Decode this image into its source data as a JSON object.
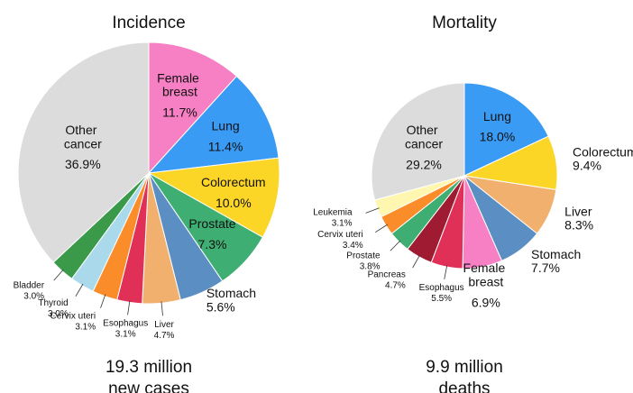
{
  "chart_data": [
    {
      "type": "pie",
      "title": "Incidence",
      "categories": [
        "Female breast",
        "Lung",
        "Colorectum",
        "Prostate",
        "Stomach",
        "Liver",
        "Esophagus",
        "Cervix uteri",
        "Thyroid",
        "Bladder",
        "Other cancer"
      ],
      "values": [
        11.7,
        11.4,
        10.0,
        7.3,
        5.6,
        4.7,
        3.1,
        3.1,
        3.0,
        3.0,
        36.9
      ],
      "value_labels": [
        "11.7%",
        "11.4%",
        "10.0%",
        "7.3%",
        "5.6%",
        "4.7%",
        "3.1%",
        "3.1%",
        "3.0%",
        "3.0%",
        "36.9%"
      ],
      "colors": [
        "#f77fc4",
        "#3a9bf5",
        "#fcd626",
        "#3fae72",
        "#5b8fc4",
        "#f2b06e",
        "#e03058",
        "#fb8c2a",
        "#a9d9ea",
        "#3a9a4a",
        "#dcdcdc"
      ],
      "caption": [
        "19.3 million",
        "new cases"
      ]
    },
    {
      "type": "pie",
      "title": "Mortality",
      "categories": [
        "Lung",
        "Colorectum",
        "Liver",
        "Stomach",
        "Female breast",
        "Esophagus",
        "Pancreas",
        "Prostate",
        "Cervix uteri",
        "Leukemia",
        "Other cancer"
      ],
      "values": [
        18.0,
        9.4,
        8.3,
        7.7,
        6.9,
        5.5,
        4.7,
        3.8,
        3.4,
        3.1,
        29.2
      ],
      "value_labels": [
        "18.0%",
        "9.4%",
        "8.3%",
        "7.7%",
        "6.9%",
        "5.5%",
        "4.7%",
        "3.8%",
        "3.4%",
        "3.1%",
        "29.2%"
      ],
      "colors": [
        "#3a9bf5",
        "#fcd626",
        "#f2b06e",
        "#5b8fc4",
        "#f77fc4",
        "#e03058",
        "#9e1b32",
        "#3fae72",
        "#fb8c2a",
        "#fff7b0",
        "#dcdcdc"
      ],
      "caption": [
        "9.9 million",
        "deaths"
      ]
    }
  ]
}
